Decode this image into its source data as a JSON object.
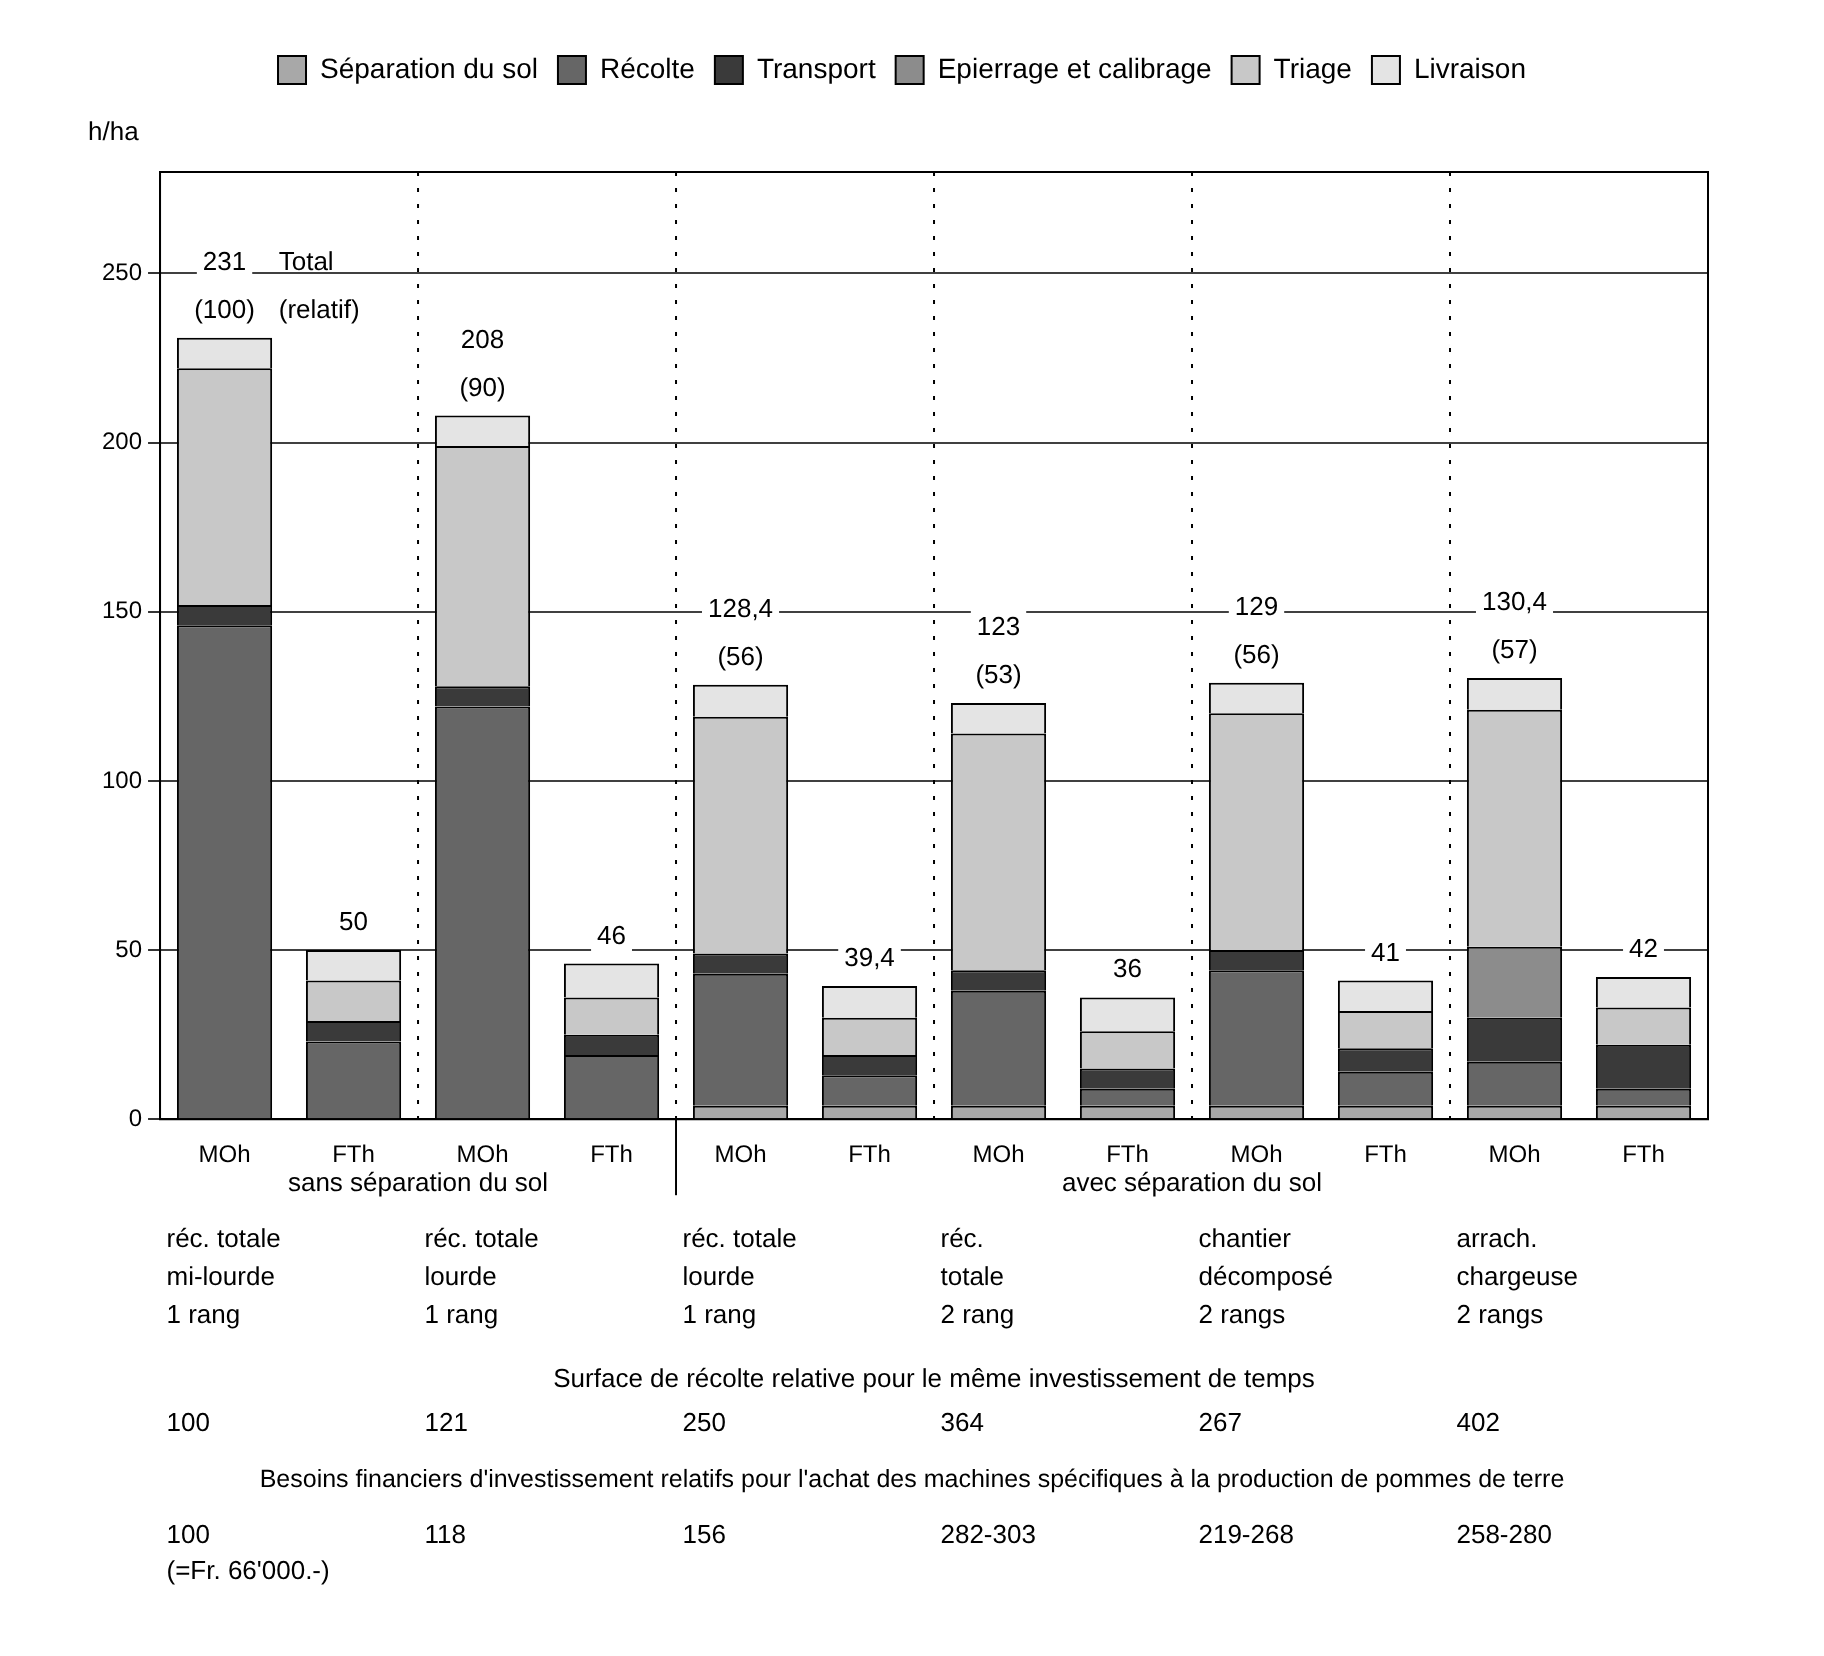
{
  "chart_data": {
    "type": "bar",
    "stacked": true,
    "ylabel": "h/ha",
    "categories": [
      "MOh",
      "FTh",
      "MOh",
      "FTh",
      "MOh",
      "FTh",
      "MOh",
      "FTh",
      "MOh",
      "FTh",
      "MOh",
      "FTh"
    ],
    "series": [
      {
        "name": "Séparation du sol",
        "color": "#a8a8a8",
        "values": [
          0,
          0,
          0,
          0,
          4,
          4,
          4,
          4,
          4,
          4,
          4,
          4
        ]
      },
      {
        "name": "Récolte",
        "color": "#666666",
        "values": [
          146,
          23,
          122,
          19,
          39,
          9,
          34,
          5,
          40,
          10,
          13,
          5
        ]
      },
      {
        "name": "Transport",
        "color": "#3a3a3a",
        "values": [
          6,
          6,
          6,
          6,
          6,
          6,
          6,
          6,
          6,
          7,
          13,
          13
        ]
      },
      {
        "name": "Epierrage et calibrage",
        "color": "#8c8c8c",
        "values": [
          0,
          0,
          0,
          0,
          0,
          0,
          0,
          0,
          0,
          0,
          21,
          0
        ]
      },
      {
        "name": "Triage",
        "color": "#c8c8c8",
        "values": [
          70,
          12,
          71,
          11,
          70,
          11,
          70,
          11,
          70,
          11,
          70,
          11
        ]
      },
      {
        "name": "Livraison",
        "color": "#e4e4e4",
        "values": [
          9,
          9,
          9,
          10,
          9.4,
          9.4,
          9,
          10,
          9,
          9,
          9.4,
          9
        ]
      }
    ],
    "totals": [
      "231\n(100)",
      "50",
      "208\n(90)",
      "46",
      "128,4\n(56)",
      "39,4",
      "123\n(53)",
      "36",
      "129\n(56)",
      "41",
      "130,4\n(57)",
      "42"
    ],
    "ylim": [
      0,
      280
    ],
    "yticks": [
      0,
      50,
      100,
      150,
      200,
      250
    ],
    "grid": "y",
    "legend": "top",
    "annotations": [
      "Total\n(relatif)",
      "sans séparation du sol",
      "avec séparation du sol",
      "réc. totale\nmi-lourde\n1 rang",
      "réc. totale\nlourde\n1 rang",
      "réc. totale\nlourde\n1 rang",
      "réc.\ntotale\n2 rang",
      "chantier\ndécomposé\n2 rangs",
      "arrach.\nchargeuse\n2 rangs",
      "Surface de récolte relative pour le même investissement de temps",
      "100",
      "121",
      "250",
      "364",
      "267",
      "402",
      "Besoins financiers d'investissement relatifs pour l'achat des machines spécifiques à la production de pommes de terre",
      "100\n(=Fr. 66'000.-)",
      "118",
      "156",
      "282-303",
      "219-268",
      "258-280"
    ]
  }
}
